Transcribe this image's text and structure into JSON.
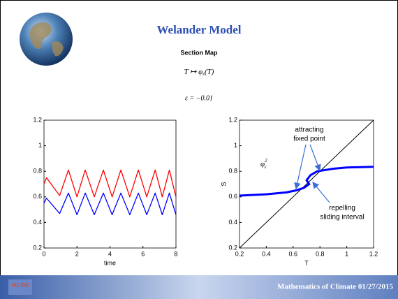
{
  "slide": {
    "title": "Welander Model",
    "subtitle": "Section Map",
    "map": {
      "lead": "T ↦ φ",
      "sub": "ε",
      "tail": "(T)"
    },
    "parameter": "ε = −0.01",
    "logo": "MCRN",
    "footer": "Mathematics of Climate  01/27/2015"
  },
  "chart_data": [
    {
      "type": "line",
      "x_label": "time",
      "x": [
        0,
        0.15,
        0.95,
        1.48,
        2.0,
        2.5,
        3.05,
        3.6,
        4.13,
        4.66,
        5.2,
        5.72,
        6.23,
        6.74,
        7.17,
        7.6,
        8.0
      ],
      "series": [
        {
          "color": "#ff0000",
          "values": [
            0.7,
            0.75,
            0.61,
            0.81,
            0.6,
            0.81,
            0.6,
            0.81,
            0.6,
            0.81,
            0.6,
            0.81,
            0.6,
            0.81,
            0.6,
            0.81,
            0.6
          ]
        },
        {
          "color": "#0000ff",
          "values": [
            0.55,
            0.59,
            0.47,
            0.63,
            0.46,
            0.63,
            0.46,
            0.63,
            0.46,
            0.63,
            0.46,
            0.63,
            0.46,
            0.63,
            0.46,
            0.63,
            0.46
          ]
        }
      ],
      "xlim": [
        0,
        8
      ],
      "xticks": [
        0,
        2,
        4,
        6,
        8
      ],
      "ylim": [
        0.2,
        1.2
      ],
      "yticks": [
        0.2,
        0.4,
        0.6,
        0.8,
        1,
        1.2
      ]
    },
    {
      "type": "line",
      "x_label": "T",
      "y_label": "S",
      "series": [
        {
          "color": "#000000",
          "width": 1,
          "x": [
            0.2,
            1.2
          ],
          "values": [
            0.2,
            1.2
          ]
        },
        {
          "color": "#0000ff",
          "width": 3,
          "x": [
            0.2,
            0.4,
            0.55,
            0.62,
            0.68,
            0.72,
            0.7,
            0.73,
            0.78,
            0.9,
            1.0,
            1.2
          ],
          "values": [
            0.61,
            0.62,
            0.635,
            0.65,
            0.67,
            0.7,
            0.73,
            0.77,
            0.8,
            0.82,
            0.83,
            0.835
          ]
        }
      ],
      "annotations": {
        "attracting": [
          "attracting",
          "fixed point"
        ],
        "repelling": [
          "repelling",
          "sliding interval"
        ],
        "phi": {
          "symbol": "φ",
          "sub": "ε",
          "sup": "2"
        }
      },
      "xlim": [
        0.2,
        1.2
      ],
      "xticks": [
        0.2,
        0.4,
        0.6,
        0.8,
        1,
        1.2
      ],
      "ylim": [
        0.2,
        1.2
      ],
      "yticks": [
        0.2,
        0.4,
        0.6,
        0.8,
        1,
        1.2
      ]
    }
  ]
}
